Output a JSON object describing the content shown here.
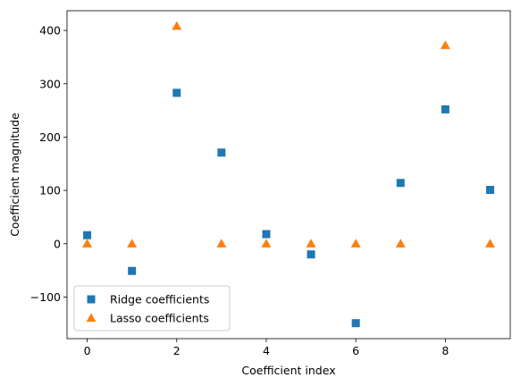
{
  "chart_data": {
    "type": "scatter",
    "title": "",
    "xlabel": "Coefficient index",
    "ylabel": "Coefficient magnitude",
    "xlim": [
      -0.45,
      9.45
    ],
    "ylim": [
      -178,
      437
    ],
    "xticks": [
      0,
      2,
      4,
      6,
      8
    ],
    "yticks": [
      -100,
      0,
      100,
      200,
      300,
      400
    ],
    "xtick_labels": [
      "0",
      "2",
      "4",
      "6",
      "8"
    ],
    "ytick_labels": [
      "−100",
      "0",
      "100",
      "200",
      "300",
      "400"
    ],
    "grid": false,
    "legend_position": "lower-left",
    "series": [
      {
        "name": "Ridge coefficients",
        "marker": "square",
        "color": "#1f77b4",
        "x": [
          0,
          1,
          2,
          3,
          4,
          5,
          6,
          7,
          8,
          9
        ],
        "y": [
          16,
          -51,
          283,
          171,
          18,
          -20,
          -149,
          114,
          252,
          101
        ]
      },
      {
        "name": "Lasso coefficients",
        "marker": "triangle",
        "color": "#ff7f0e",
        "x": [
          0,
          1,
          2,
          3,
          4,
          5,
          6,
          7,
          8,
          9
        ],
        "y": [
          0,
          0,
          408,
          0,
          0,
          0,
          0,
          0,
          372,
          0
        ]
      }
    ]
  }
}
